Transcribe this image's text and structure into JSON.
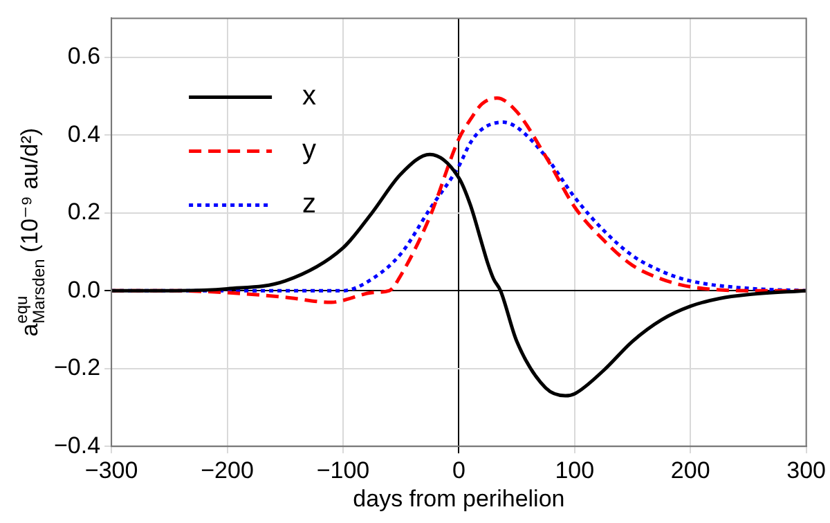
{
  "chart_data": {
    "type": "line",
    "xlabel": "days from perihelion",
    "ylabel": "a$^{equ}$$_{Marsden}$ (10⁻⁹ au/d²)",
    "xlim": [
      -300,
      300
    ],
    "xticks": [
      -300,
      -200,
      -100,
      0,
      100,
      200,
      300
    ],
    "ylim": [
      -0.4,
      0.7
    ],
    "yticks": [
      -0.4,
      -0.2,
      {
        "value": 0,
        "label": "0.0"
      },
      0.2,
      0.4,
      0.6
    ],
    "grid": true,
    "legend": "top left",
    "marker": "none",
    "series": [
      {
        "name": "x",
        "color": "#000000",
        "line_style": "solid",
        "x": [
          -300,
          -250,
          -200,
          -150,
          -100,
          -75,
          -50,
          -25,
          0,
          10,
          20,
          25,
          30,
          36,
          50,
          75,
          92,
          100,
          125,
          150,
          175,
          200,
          225,
          250,
          300
        ],
        "values": [
          0,
          0,
          0.005,
          0.025,
          0.11,
          0.2,
          0.3,
          0.35,
          0.29,
          0.22,
          0.12,
          0.07,
          0.03,
          0,
          -0.13,
          -0.25,
          -0.27,
          -0.265,
          -0.205,
          -0.13,
          -0.075,
          -0.04,
          -0.02,
          -0.01,
          0
        ]
      },
      {
        "name": "y",
        "color": "#ff0000",
        "line_style": "dashed",
        "x": [
          -300,
          -250,
          -200,
          -150,
          -110,
          -100,
          -75,
          -60,
          -50,
          -25,
          0,
          10,
          20,
          33,
          50,
          75,
          100,
          125,
          150,
          175,
          200,
          250,
          300
        ],
        "values": [
          0,
          0,
          -0.005,
          -0.017,
          -0.03,
          -0.025,
          -0.005,
          0,
          0.04,
          0.19,
          0.39,
          0.44,
          0.48,
          0.495,
          0.46,
          0.345,
          0.215,
          0.13,
          0.065,
          0.03,
          0.01,
          0,
          0
        ]
      },
      {
        "name": "z",
        "color": "#0000ff",
        "line_style": "dotted",
        "x": [
          -300,
          -200,
          -150,
          -100,
          -75,
          -50,
          -25,
          0,
          10,
          20,
          38,
          50,
          75,
          100,
          125,
          150,
          175,
          200,
          250,
          300
        ],
        "values": [
          0,
          0,
          0,
          0,
          0.03,
          0.095,
          0.21,
          0.32,
          0.38,
          0.415,
          0.433,
          0.42,
          0.345,
          0.24,
          0.155,
          0.09,
          0.05,
          0.025,
          0.006,
          0
        ]
      }
    ]
  }
}
